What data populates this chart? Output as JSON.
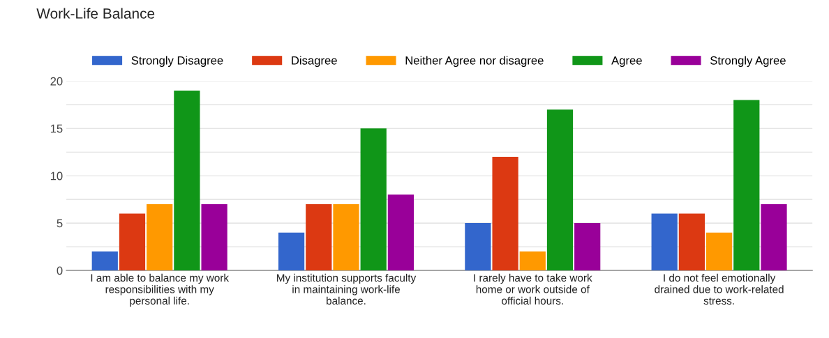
{
  "chart_data": {
    "type": "bar",
    "title": "Work-Life Balance",
    "categories": [
      "I am able to balance my work\nresponsibilities with my\npersonal life.",
      "My institution supports faculty\nin maintaining work-life\nbalance.",
      "I rarely have to take work\nhome or work outside of\nofficial hours.",
      "I do not feel emotionally\ndrained due to work-related\nstress."
    ],
    "series": [
      {
        "name": "Strongly Disagree",
        "color": "#3366cc",
        "values": [
          2,
          4,
          5,
          6
        ]
      },
      {
        "name": "Disagree",
        "color": "#dc3912",
        "values": [
          6,
          7,
          12,
          6
        ]
      },
      {
        "name": "Neither Agree nor disagree",
        "color": "#ff9900",
        "values": [
          7,
          7,
          2,
          4
        ]
      },
      {
        "name": "Agree",
        "color": "#109618",
        "values": [
          19,
          15,
          17,
          18
        ]
      },
      {
        "name": "Strongly Agree",
        "color": "#990099",
        "values": [
          7,
          8,
          5,
          7
        ]
      }
    ],
    "ylim": [
      0,
      20
    ],
    "yticks": [
      0,
      {
        "value": 2.5,
        "label": null
      },
      5,
      {
        "value": 7.5,
        "label": null
      },
      10,
      {
        "value": 12.5,
        "label": null
      },
      15,
      {
        "value": 17.5,
        "label": null
      },
      20
    ],
    "grid": "y",
    "legend": "top"
  }
}
